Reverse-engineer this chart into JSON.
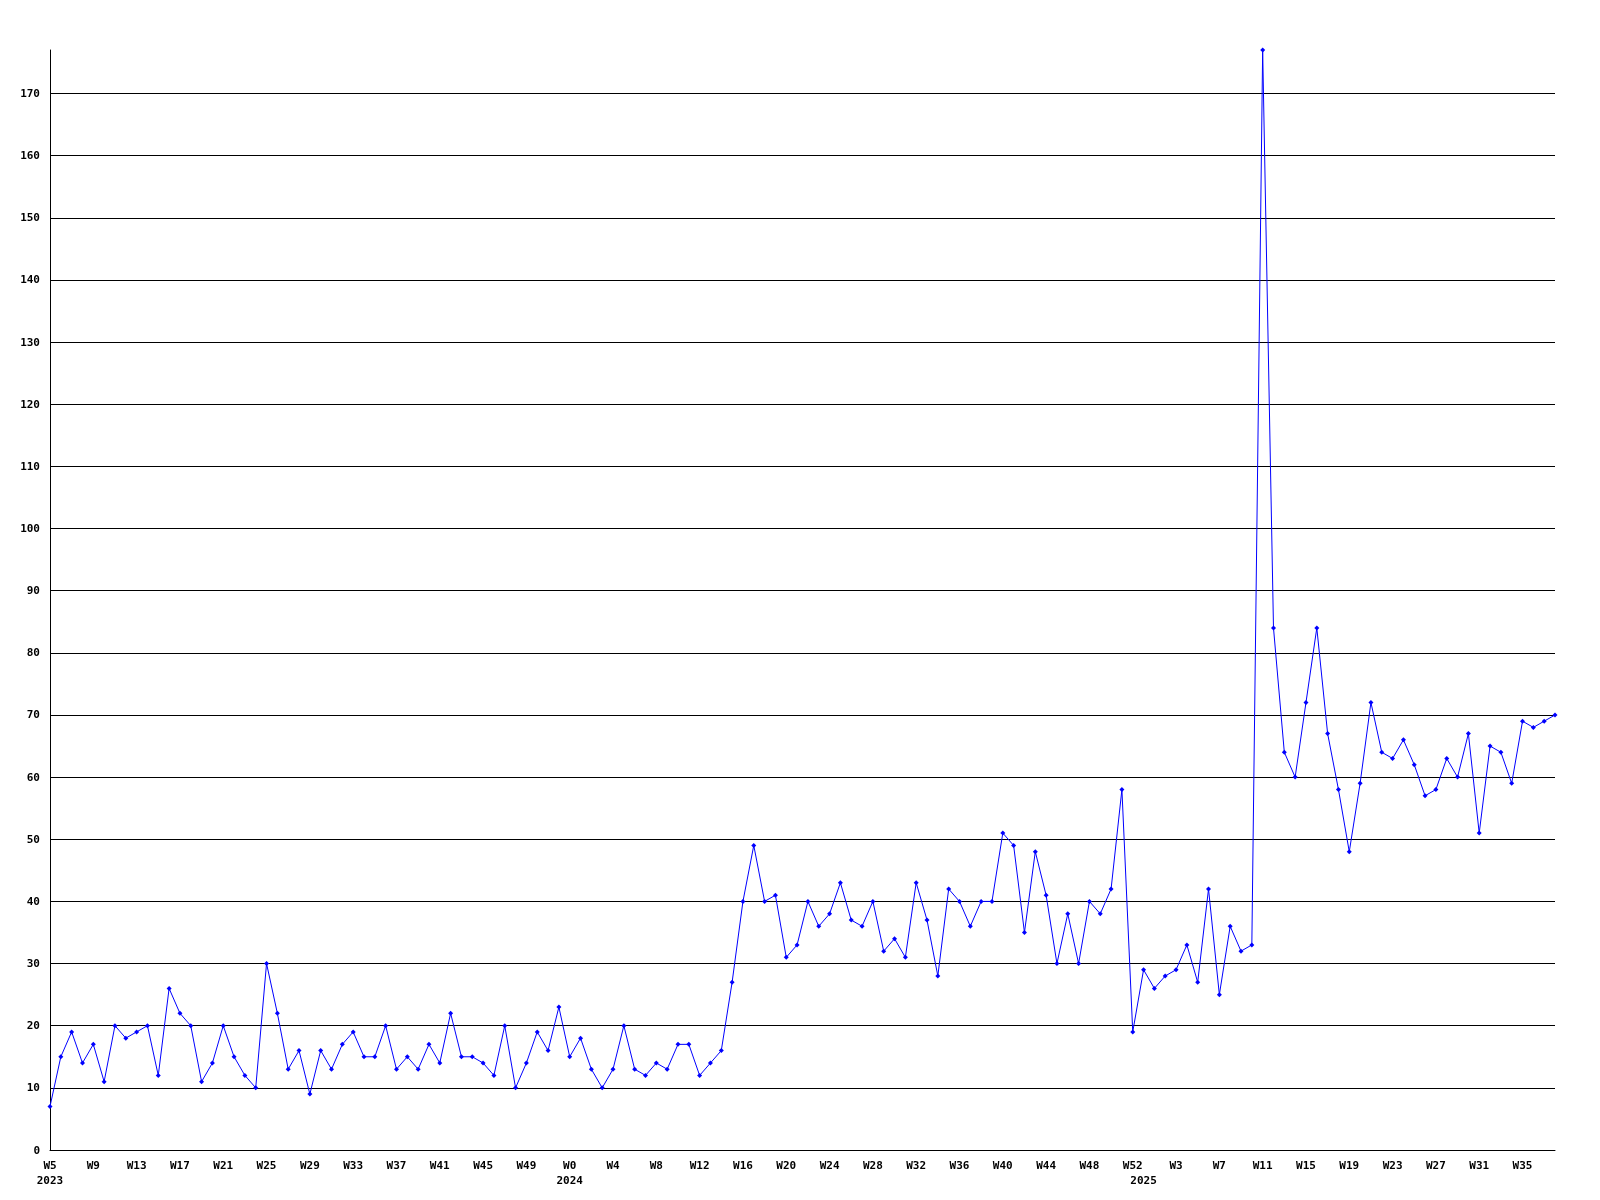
{
  "chart_data": {
    "type": "line",
    "categories": [
      "W5\n2023",
      null,
      null,
      null,
      "W9",
      null,
      null,
      null,
      "W13",
      null,
      null,
      null,
      "W17",
      null,
      null,
      null,
      "W21",
      null,
      null,
      null,
      "W25",
      null,
      null,
      null,
      "W29",
      null,
      null,
      null,
      "W33",
      null,
      null,
      null,
      "W37",
      null,
      null,
      null,
      "W41",
      null,
      null,
      null,
      "W45",
      null,
      null,
      null,
      "W49",
      null,
      null,
      null,
      "W0\n2024",
      null,
      null,
      null,
      "W4",
      null,
      null,
      null,
      "W8",
      null,
      null,
      null,
      "W12",
      null,
      null,
      null,
      "W16",
      null,
      null,
      null,
      "W20",
      null,
      null,
      null,
      "W24",
      null,
      null,
      null,
      "W28",
      null,
      null,
      null,
      "W32",
      null,
      null,
      null,
      "W36",
      null,
      null,
      null,
      "W40",
      null,
      null,
      null,
      "W44",
      null,
      null,
      null,
      "W48",
      null,
      null,
      null,
      "W52",
      "\n2025",
      null,
      null,
      "W3",
      null,
      null,
      null,
      "W7",
      null,
      null,
      null,
      "W11",
      null,
      null,
      null,
      "W15",
      null,
      null,
      null,
      "W19",
      null,
      null,
      null,
      "W23",
      null,
      null,
      null,
      "W27",
      null,
      null,
      null,
      "W31",
      null,
      null,
      null,
      "W35",
      null,
      null,
      null
    ],
    "series": [
      {
        "color": "#0000ff",
        "values": [
          7,
          15,
          19,
          14,
          17,
          11,
          20,
          18,
          19,
          20,
          12,
          26,
          22,
          20,
          11,
          14,
          20,
          15,
          12,
          10,
          30,
          22,
          13,
          16,
          9,
          16,
          13,
          17,
          19,
          15,
          15,
          20,
          13,
          15,
          13,
          17,
          14,
          22,
          15,
          15,
          14,
          12,
          20,
          10,
          14,
          19,
          16,
          23,
          15,
          18,
          13,
          10,
          13,
          20,
          13,
          12,
          14,
          13,
          17,
          17,
          12,
          14,
          16,
          27,
          40,
          49,
          40,
          41,
          31,
          33,
          40,
          36,
          38,
          43,
          37,
          36,
          40,
          32,
          34,
          31,
          43,
          37,
          28,
          42,
          40,
          36,
          40,
          40,
          51,
          49,
          35,
          48,
          41,
          30,
          38,
          30,
          40,
          38,
          42,
          58,
          19,
          29,
          26,
          28,
          29,
          33,
          27,
          42,
          25,
          36,
          32,
          33,
          177,
          84,
          64,
          60,
          72,
          84,
          67,
          58,
          48,
          59,
          72,
          64,
          63,
          66,
          62,
          57,
          58,
          63,
          60,
          67,
          51,
          65,
          64,
          59,
          69,
          68,
          69,
          70
        ]
      }
    ],
    "ylim": [
      0,
      177
    ],
    "yticks": [
      0,
      10,
      20,
      30,
      40,
      50,
      60,
      70,
      80,
      90,
      100,
      110,
      120,
      130,
      140,
      150,
      160,
      170
    ],
    "grid": "y",
    "marker": "diamond",
    "line_style": "solid"
  }
}
